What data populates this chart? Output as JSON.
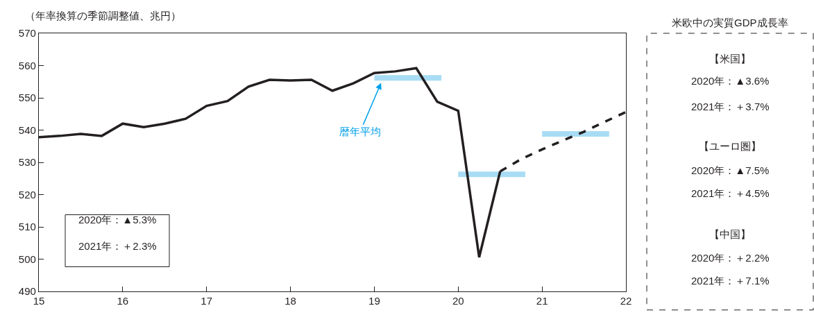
{
  "chart_data": {
    "type": "line",
    "ylabel": "（年率換算の季節調整値、兆円）",
    "series": [
      {
        "color": "#231f20",
        "line_style": "solid",
        "x": [
          15.0,
          15.25,
          15.5,
          15.75,
          16.0,
          16.25,
          16.5,
          16.75,
          17.0,
          17.25,
          17.5,
          17.75,
          18.0,
          18.25,
          18.5,
          18.75,
          19.0,
          19.25,
          19.5,
          19.75,
          20.0,
          20.25,
          20.5
        ],
        "values": [
          537.8,
          538.2,
          538.8,
          538.2,
          542.0,
          540.9,
          542.0,
          543.5,
          547.5,
          549.0,
          553.5,
          555.6,
          555.4,
          555.6,
          552.2,
          554.5,
          557.7,
          558.2,
          559.2,
          548.8,
          546.0,
          500.6,
          527.2
        ]
      },
      {
        "color": "#231f20",
        "line_style": "dashed",
        "x": [
          20.5,
          20.75,
          21.0,
          21.25,
          21.5,
          21.75,
          22.0
        ],
        "values": [
          527.2,
          531.0,
          534.0,
          536.8,
          539.5,
          542.6,
          545.6
        ]
      },
      {
        "color": "#a8dcf4",
        "line_style": "solid",
        "x": [
          19.0,
          19.8
        ],
        "values": [
          556.2,
          556.2
        ]
      },
      {
        "color": "#a8dcf4",
        "line_style": "solid",
        "x": [
          20.0,
          20.8
        ],
        "values": [
          526.3,
          526.3
        ]
      },
      {
        "color": "#a8dcf4",
        "line_style": "solid",
        "x": [
          21.0,
          21.8
        ],
        "values": [
          538.8,
          538.8
        ]
      }
    ],
    "xlim": [
      15,
      22
    ],
    "xticks": [
      15,
      16,
      17,
      18,
      19,
      20,
      21,
      22
    ],
    "ylim": [
      490,
      570
    ],
    "yticks": [
      490,
      500,
      510,
      520,
      530,
      540,
      550,
      560,
      570
    ],
    "marker": "none",
    "annotations": [
      "2020年：▲5.3%",
      "2021年：＋2.3%",
      {
        "text": "暦年平均",
        "x": 19.08,
        "y": 554.6
      },
      "米欧中の実質GDP成長率",
      "【米国】",
      "2020年：▲3.6%",
      "2021年：＋3.7%",
      "【ユーロ圏】",
      "2020年：▲7.5%",
      "2021年：＋4.5%",
      "【中国】",
      "2020年：＋2.2%",
      "2021年：＋7.1%"
    ]
  }
}
